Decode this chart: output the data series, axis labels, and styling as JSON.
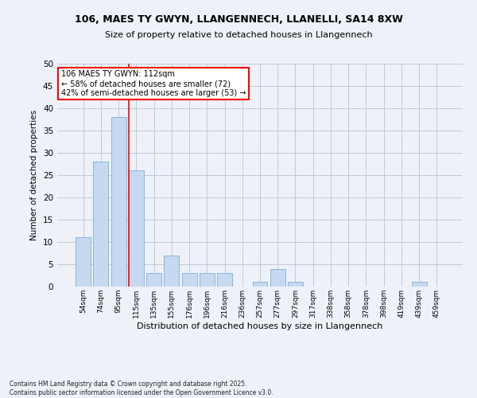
{
  "title1": "106, MAES TY GWYN, LLANGENNECH, LLANELLI, SA14 8XW",
  "title2": "Size of property relative to detached houses in Llangennech",
  "xlabel": "Distribution of detached houses by size in Llangennech",
  "ylabel": "Number of detached properties",
  "categories": [
    "54sqm",
    "74sqm",
    "95sqm",
    "115sqm",
    "135sqm",
    "155sqm",
    "176sqm",
    "196sqm",
    "216sqm",
    "236sqm",
    "257sqm",
    "277sqm",
    "297sqm",
    "317sqm",
    "338sqm",
    "358sqm",
    "378sqm",
    "398sqm",
    "419sqm",
    "439sqm",
    "459sqm"
  ],
  "values": [
    11,
    28,
    38,
    26,
    3,
    7,
    3,
    3,
    3,
    0,
    1,
    4,
    1,
    0,
    0,
    0,
    0,
    0,
    0,
    1,
    0
  ],
  "bar_color": "#c6d9f0",
  "bar_edge_color": "#7bafd4",
  "grid_color": "#c0c8d8",
  "ref_line_color": "red",
  "annotation_text": "106 MAES TY GWYN: 112sqm\n← 58% of detached houses are smaller (72)\n42% of semi-detached houses are larger (53) →",
  "annotation_box_color": "white",
  "annotation_box_edge": "red",
  "footer": "Contains HM Land Registry data © Crown copyright and database right 2025.\nContains public sector information licensed under the Open Government Licence v3.0.",
  "ylim": [
    0,
    50
  ],
  "yticks": [
    0,
    5,
    10,
    15,
    20,
    25,
    30,
    35,
    40,
    45,
    50
  ],
  "bg_color": "#eef2f8"
}
